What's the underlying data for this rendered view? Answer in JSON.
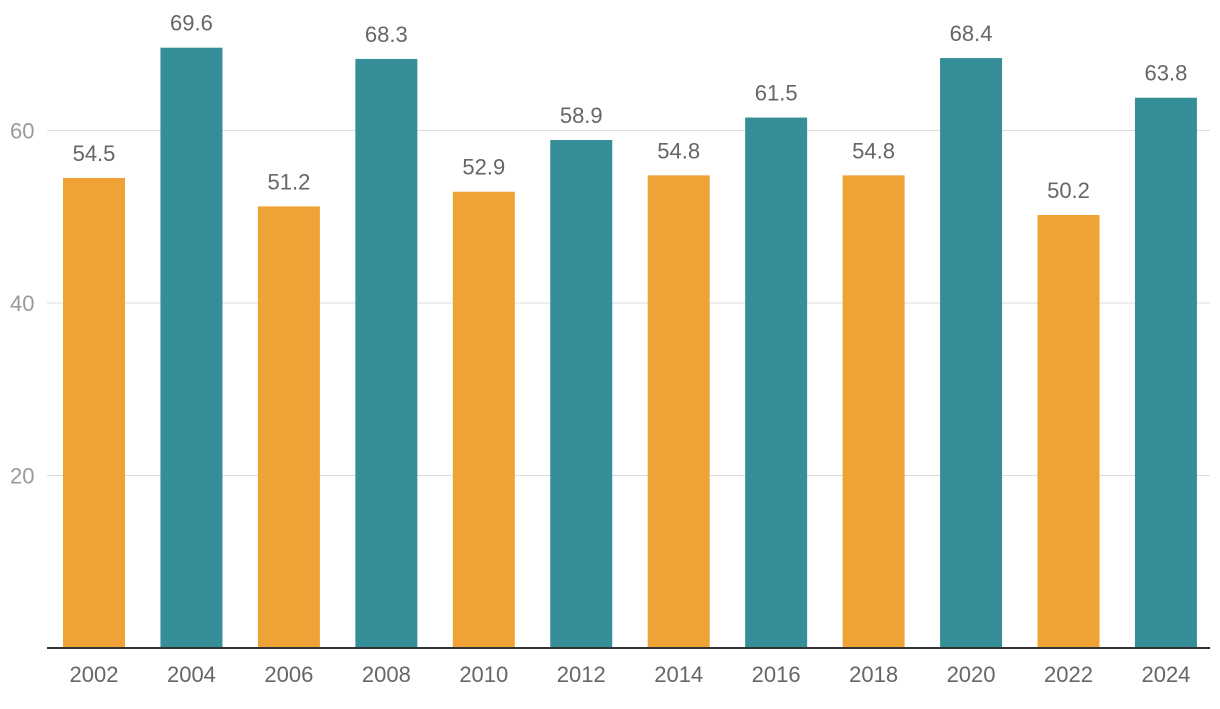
{
  "chart_data": {
    "type": "bar",
    "title": "",
    "xlabel": "",
    "ylabel": "",
    "categories": [
      "2002",
      "2004",
      "2006",
      "2008",
      "2010",
      "2012",
      "2014",
      "2016",
      "2018",
      "2020",
      "2022",
      "2024"
    ],
    "values": [
      54.5,
      69.6,
      51.2,
      68.3,
      52.9,
      58.9,
      54.8,
      61.5,
      54.8,
      68.4,
      50.2,
      63.8
    ],
    "value_labels": [
      "54.5",
      "69.6",
      "51.2",
      "68.3",
      "52.9",
      "58.9",
      "54.8",
      "61.5",
      "54.8",
      "68.4",
      "50.2",
      "63.8"
    ],
    "bar_colors": [
      "#efa235",
      "#368e99",
      "#efa235",
      "#368e99",
      "#efa235",
      "#368e99",
      "#efa235",
      "#368e99",
      "#efa235",
      "#368e99",
      "#efa235",
      "#368e99"
    ],
    "yticks": [
      20,
      40,
      60
    ],
    "ytick_labels": [
      "20",
      "40",
      "60"
    ],
    "ylim": [
      0,
      75
    ],
    "grid": true,
    "legend": "none"
  }
}
